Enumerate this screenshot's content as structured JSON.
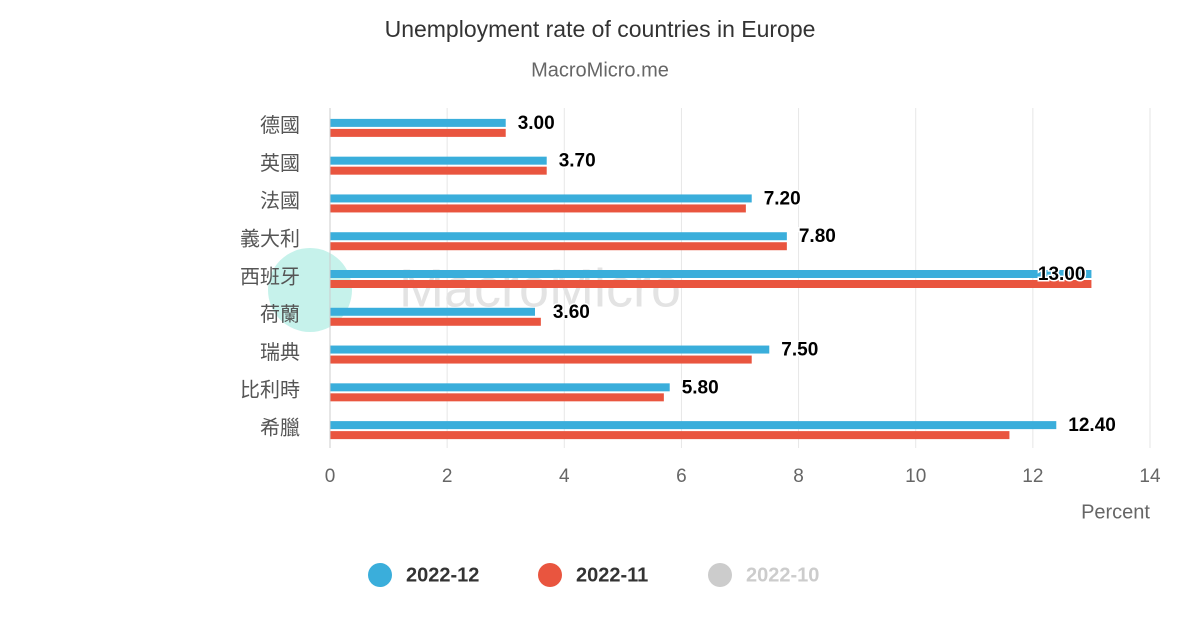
{
  "chart_data": {
    "type": "hbar",
    "title": "Unemployment rate of countries in Europe",
    "subtitle": "MacroMicro.me",
    "watermark": "MacroMicro",
    "x_label": "Percent",
    "categories": [
      "德國",
      "英國",
      "法國",
      "義大利",
      "西班牙",
      "荷蘭",
      "瑞典",
      "比利時",
      "希臘"
    ],
    "series": [
      {
        "name": "2022-12",
        "color": "#3aaedb",
        "values": [
          3.0,
          3.7,
          7.2,
          7.8,
          13.0,
          3.5,
          7.5,
          5.8,
          12.4
        ],
        "value_labels": [
          "3.00",
          "3.70",
          "7.20",
          "7.80",
          "13.00",
          null,
          "7.50",
          "5.80",
          "12.40"
        ]
      },
      {
        "name": "2022-11",
        "color": "#e9553f",
        "values": [
          3.0,
          3.7,
          7.1,
          7.8,
          13.0,
          3.6,
          7.2,
          5.7,
          11.6
        ],
        "value_labels": [
          null,
          null,
          null,
          null,
          null,
          "3.60",
          null,
          null,
          null
        ]
      },
      {
        "name": "2022-10",
        "color": "#cccccc",
        "visible": false
      }
    ],
    "xlim": [
      0,
      14
    ],
    "xticks": [
      0,
      2,
      4,
      6,
      8,
      10,
      12,
      14
    ],
    "grid": true
  }
}
